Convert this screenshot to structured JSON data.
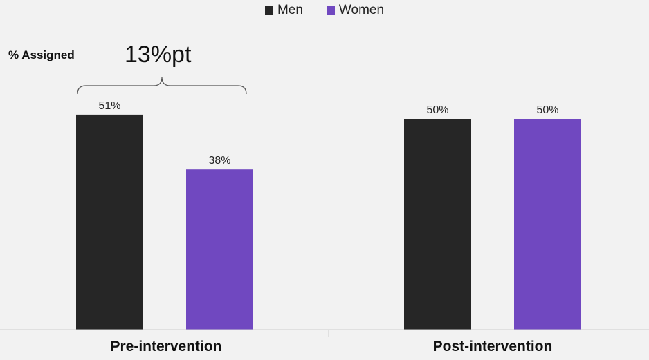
{
  "chart_data": {
    "type": "bar",
    "categories": [
      "Pre-intervention",
      "Post-intervention"
    ],
    "series": [
      {
        "name": "Men",
        "values": [
          51,
          50
        ],
        "labels": [
          "51%",
          "50%"
        ],
        "color": "#262626"
      },
      {
        "name": "Women",
        "values": [
          38,
          50
        ],
        "labels": [
          "38%",
          "50%"
        ],
        "color": "#7048c0"
      }
    ],
    "ylabel": "% Assigned",
    "ylim": [
      0,
      60
    ],
    "grid": false,
    "legend": "top-center",
    "annotation": "13%pt"
  }
}
